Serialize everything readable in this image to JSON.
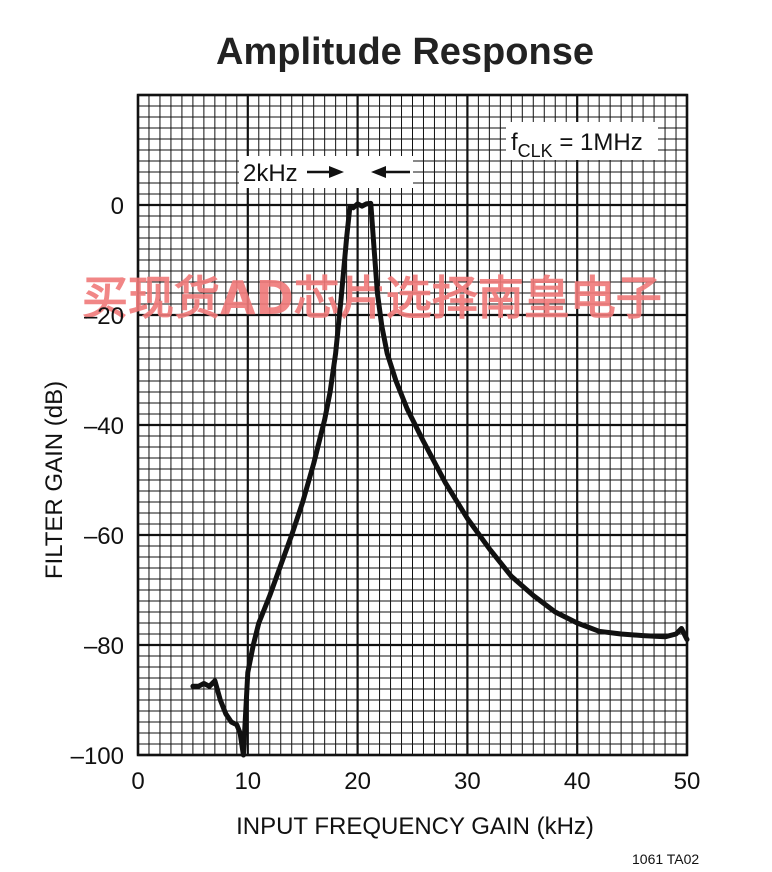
{
  "chart_data": {
    "type": "line",
    "title": "Amplitude Response",
    "xlabel": "INPUT FREQUENCY GAIN (kHz)",
    "ylabel": "FILTER GAIN (dB)",
    "xlim": [
      0,
      50
    ],
    "ylim": [
      -100,
      20
    ],
    "xticks": [
      "0",
      "10",
      "20",
      "30",
      "40",
      "50"
    ],
    "yticks": [
      "0",
      "–20",
      "–40",
      "–60",
      "–80",
      "–100"
    ],
    "grid": true,
    "annotations": {
      "clock": "1MHz",
      "bandwidth": "2kHz"
    },
    "figure_id": "1061 TA02",
    "watermark": "买现货AD芯片选择南皇电子",
    "series": [
      {
        "x": [
          5,
          5.5,
          6,
          6.5,
          7,
          7.5,
          8,
          8.5,
          9,
          9.3,
          9.6,
          10,
          10.5,
          11,
          12,
          13,
          14,
          15,
          16,
          17,
          17.5,
          18,
          18.5,
          19,
          19.3,
          19.6,
          20,
          20.4,
          20.8,
          21.2,
          21.5,
          21.8,
          22.2,
          22.7,
          23.5,
          24.5,
          26,
          28,
          30,
          32,
          34,
          36,
          38,
          40,
          42,
          44,
          46,
          48,
          49,
          49.5,
          50
        ],
        "y": [
          -87.5,
          -87.5,
          -87,
          -87.5,
          -86.5,
          -90,
          -92.5,
          -94,
          -94.5,
          -96,
          -100,
          -85,
          -80,
          -76,
          -71,
          -65.5,
          -60,
          -54,
          -47,
          -39,
          -34,
          -27,
          -17,
          -6,
          -0.3,
          -0.5,
          0.2,
          -0.2,
          0.2,
          0.3,
          -8,
          -16,
          -22,
          -27,
          -32,
          -37,
          -43,
          -50.5,
          -57,
          -62.5,
          -67.5,
          -71,
          -74,
          -76,
          -77.5,
          -78,
          -78.3,
          -78.5,
          -78,
          -77,
          -79
        ]
      }
    ]
  }
}
